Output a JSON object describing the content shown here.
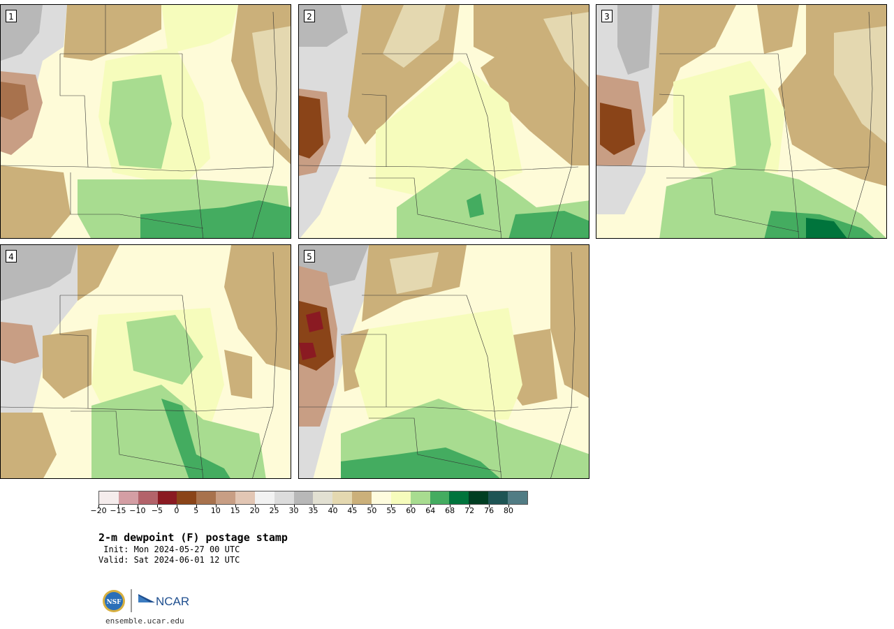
{
  "panels": [
    {
      "label": "1"
    },
    {
      "label": "2"
    },
    {
      "label": "3"
    },
    {
      "label": "4"
    },
    {
      "label": "5"
    }
  ],
  "colorbar": {
    "colors": [
      "#f5ecec",
      "#d49ea4",
      "#b3636a",
      "#8a1a22",
      "#8a4418",
      "#a8724d",
      "#c89e84",
      "#e2c6b4",
      "#f2f2f2",
      "#dcdcdc",
      "#b8b8b8",
      "#e2e0d2",
      "#e4d8b0",
      "#cbb07a",
      "#fefcde",
      "#f6fcbc",
      "#a8dc90",
      "#44ac60",
      "#00743c",
      "#003e22",
      "#1e5454",
      "#517c84"
    ],
    "tick_labels": [
      "−20",
      "−15",
      "−10",
      "−5",
      "0",
      "5",
      "10",
      "15",
      "20",
      "25",
      "30",
      "35",
      "40",
      "45",
      "50",
      "55",
      "60",
      "64",
      "68",
      "72",
      "76",
      "80"
    ]
  },
  "title": "2-m dewpoint (F) postage stamp",
  "init": " Init: Mon 2024-05-27 00 UTC",
  "valid": "Valid: Sat 2024-06-01 12 UTC",
  "logo": {
    "nsf": "NSF",
    "ncar": "NCAR"
  },
  "site": "ensemble.ucar.edu"
}
